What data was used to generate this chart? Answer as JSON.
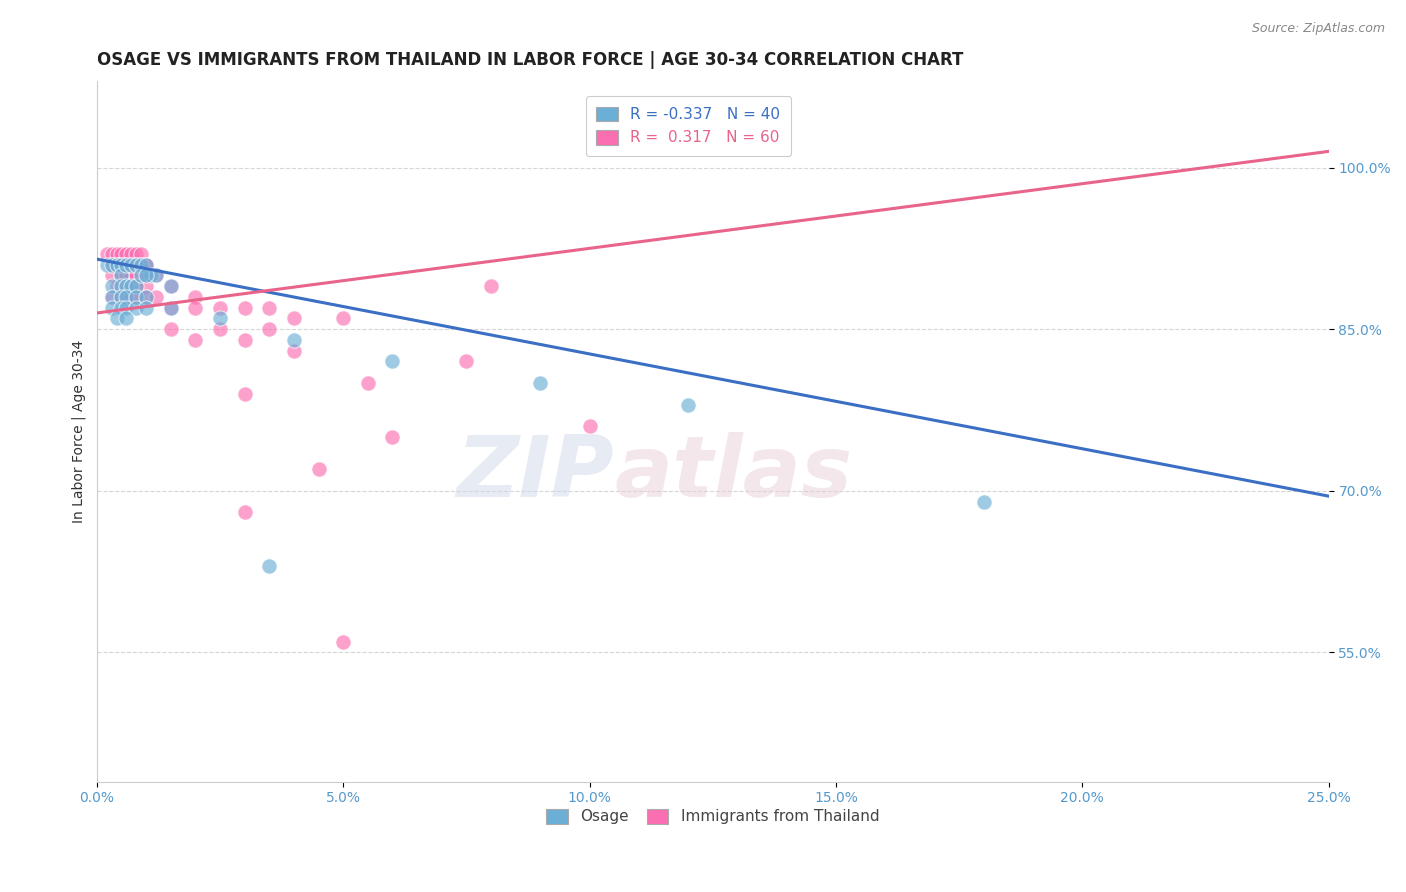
{
  "title": "OSAGE VS IMMIGRANTS FROM THAILAND IN LABOR FORCE | AGE 30-34 CORRELATION CHART",
  "source": "Source: ZipAtlas.com",
  "xlim": [
    0.0,
    25.0
  ],
  "ylim": [
    43.0,
    108.0
  ],
  "watermark_zip": "ZIP",
  "watermark_atlas": "atlas",
  "legend_blue_r": "-0.337",
  "legend_blue_n": "40",
  "legend_pink_r": "0.317",
  "legend_pink_n": "60",
  "blue_color": "#6baed6",
  "pink_color": "#fb6eb1",
  "blue_scatter": [
    [
      0.2,
      91
    ],
    [
      0.3,
      91
    ],
    [
      0.4,
      91
    ],
    [
      0.5,
      91
    ],
    [
      0.5,
      90
    ],
    [
      0.6,
      91
    ],
    [
      0.7,
      91
    ],
    [
      0.8,
      91
    ],
    [
      0.9,
      91
    ],
    [
      1.0,
      91
    ],
    [
      1.1,
      90
    ],
    [
      1.2,
      90
    ],
    [
      0.3,
      89
    ],
    [
      0.5,
      89
    ],
    [
      0.6,
      89
    ],
    [
      0.7,
      89
    ],
    [
      0.8,
      89
    ],
    [
      0.9,
      90
    ],
    [
      1.0,
      90
    ],
    [
      1.5,
      89
    ],
    [
      0.3,
      88
    ],
    [
      0.5,
      88
    ],
    [
      0.6,
      88
    ],
    [
      0.8,
      88
    ],
    [
      1.0,
      88
    ],
    [
      0.3,
      87
    ],
    [
      0.5,
      87
    ],
    [
      0.6,
      87
    ],
    [
      0.8,
      87
    ],
    [
      1.0,
      87
    ],
    [
      0.4,
      86
    ],
    [
      0.6,
      86
    ],
    [
      1.5,
      87
    ],
    [
      2.5,
      86
    ],
    [
      4.0,
      84
    ],
    [
      6.0,
      82
    ],
    [
      9.0,
      80
    ],
    [
      12.0,
      78
    ],
    [
      18.0,
      69
    ],
    [
      3.5,
      63
    ]
  ],
  "pink_scatter": [
    [
      0.2,
      92
    ],
    [
      0.3,
      92
    ],
    [
      0.4,
      92
    ],
    [
      0.5,
      92
    ],
    [
      0.5,
      91
    ],
    [
      0.6,
      92
    ],
    [
      0.7,
      92
    ],
    [
      0.8,
      92
    ],
    [
      0.9,
      92
    ],
    [
      1.0,
      91
    ],
    [
      0.3,
      91
    ],
    [
      0.4,
      91
    ],
    [
      0.5,
      91
    ],
    [
      0.6,
      91
    ],
    [
      0.7,
      91
    ],
    [
      0.8,
      91
    ],
    [
      0.9,
      91
    ],
    [
      1.0,
      91
    ],
    [
      0.3,
      90
    ],
    [
      0.5,
      90
    ],
    [
      0.6,
      90
    ],
    [
      0.7,
      90
    ],
    [
      0.8,
      90
    ],
    [
      1.0,
      90
    ],
    [
      1.2,
      90
    ],
    [
      0.4,
      89
    ],
    [
      0.6,
      89
    ],
    [
      0.8,
      89
    ],
    [
      1.0,
      89
    ],
    [
      1.5,
      89
    ],
    [
      0.3,
      88
    ],
    [
      0.5,
      88
    ],
    [
      0.6,
      88
    ],
    [
      0.7,
      88
    ],
    [
      0.8,
      88
    ],
    [
      1.0,
      88
    ],
    [
      1.2,
      88
    ],
    [
      2.0,
      88
    ],
    [
      1.5,
      87
    ],
    [
      2.0,
      87
    ],
    [
      2.5,
      87
    ],
    [
      3.0,
      87
    ],
    [
      3.5,
      87
    ],
    [
      4.0,
      86
    ],
    [
      1.5,
      85
    ],
    [
      2.5,
      85
    ],
    [
      3.5,
      85
    ],
    [
      2.0,
      84
    ],
    [
      3.0,
      84
    ],
    [
      5.0,
      86
    ],
    [
      8.0,
      89
    ],
    [
      4.0,
      83
    ],
    [
      3.0,
      79
    ],
    [
      5.5,
      80
    ],
    [
      7.5,
      82
    ],
    [
      6.0,
      75
    ],
    [
      10.0,
      76
    ],
    [
      4.5,
      72
    ],
    [
      3.0,
      68
    ],
    [
      5.0,
      56
    ]
  ],
  "blue_line_x": [
    0.0,
    25.0
  ],
  "blue_line_y": [
    91.5,
    69.5
  ],
  "pink_line_x": [
    0.0,
    25.0
  ],
  "pink_line_y": [
    86.5,
    101.5
  ],
  "xticks": [
    0.0,
    5.0,
    10.0,
    15.0,
    20.0,
    25.0
  ],
  "xticklabels": [
    "0.0%",
    "5.0%",
    "10.0%",
    "15.0%",
    "20.0%",
    "25.0%"
  ],
  "yticks": [
    55.0,
    70.0,
    85.0,
    100.0
  ],
  "yticklabels": [
    "55.0%",
    "70.0%",
    "85.0%",
    "100.0%"
  ],
  "tick_color": "#5599cc",
  "title_fontsize": 12,
  "axis_label_fontsize": 10,
  "tick_fontsize": 10,
  "legend_fontsize": 11
}
